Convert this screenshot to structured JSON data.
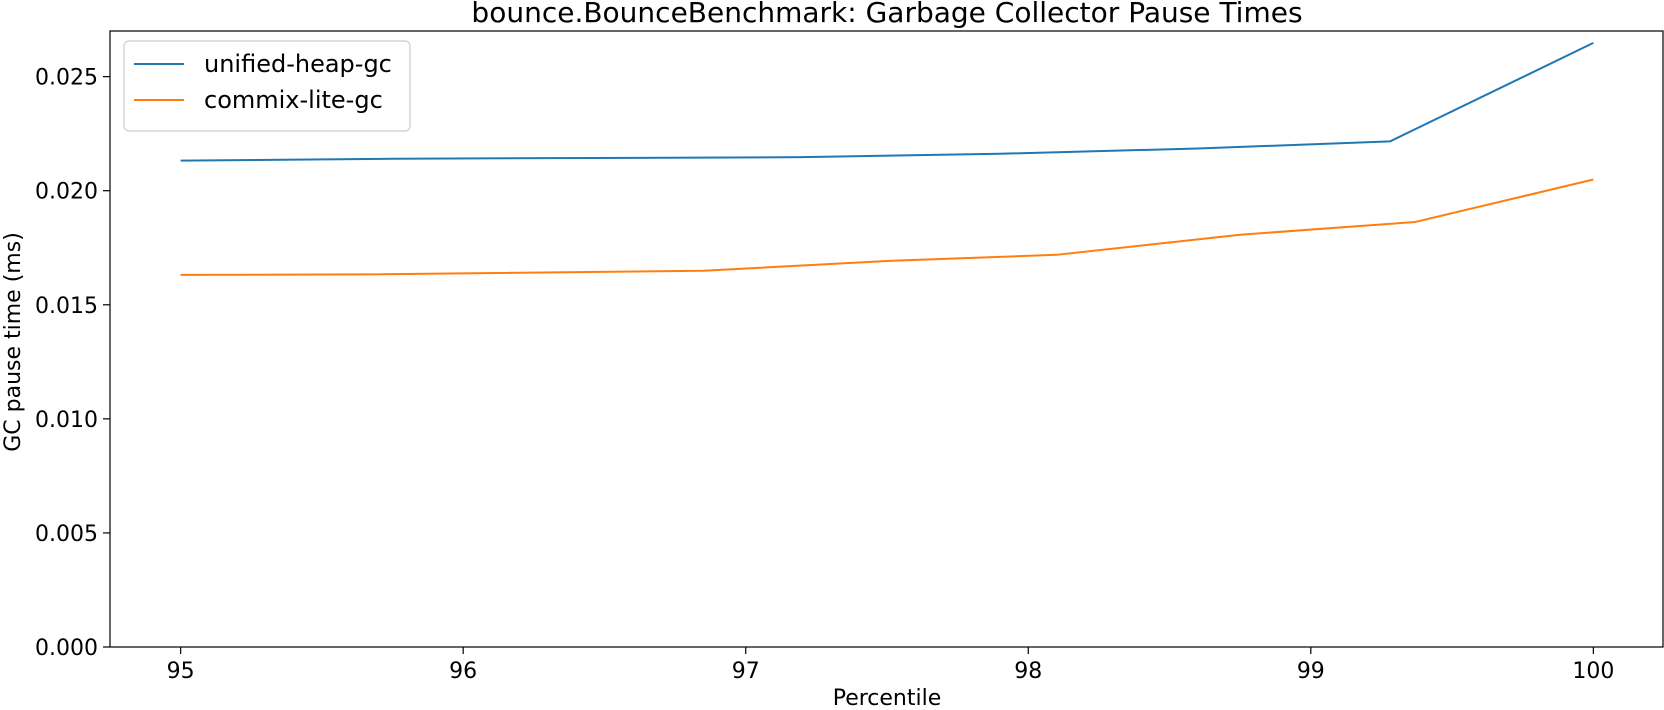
{
  "chart_data": {
    "type": "line",
    "title": "bounce.BounceBenchmark: Garbage Collector Pause Times",
    "xlabel": "Percentile",
    "ylabel": "GC pause time (ms)",
    "xlim": [
      94.75,
      100.25
    ],
    "ylim": [
      0.0,
      0.027
    ],
    "xticks": [
      95,
      96,
      97,
      98,
      99,
      100
    ],
    "yticks": [
      0.0,
      0.005,
      0.01,
      0.015,
      0.02,
      0.025
    ],
    "xtick_labels": [
      "95",
      "96",
      "97",
      "98",
      "99",
      "100"
    ],
    "ytick_labels": [
      "0.000",
      "0.005",
      "0.010",
      "0.015",
      "0.020",
      "0.025"
    ],
    "grid": false,
    "legend_position": "top-left",
    "series": [
      {
        "name": "unified-heap-gc",
        "color": "#1f77b4",
        "x": [
          95.0,
          95.75,
          97.2,
          97.9,
          98.6,
          99.28,
          100.0
        ],
        "y": [
          0.02132,
          0.0214,
          0.02147,
          0.02162,
          0.02185,
          0.02216,
          0.02648
        ]
      },
      {
        "name": "commix-lite-gc",
        "color": "#ff7f0e",
        "x": [
          95.0,
          95.65,
          96.85,
          97.5,
          98.1,
          98.75,
          99.37,
          100.0
        ],
        "y": [
          0.01631,
          0.01633,
          0.01649,
          0.01692,
          0.01719,
          0.01807,
          0.01863,
          0.02049
        ]
      }
    ]
  }
}
